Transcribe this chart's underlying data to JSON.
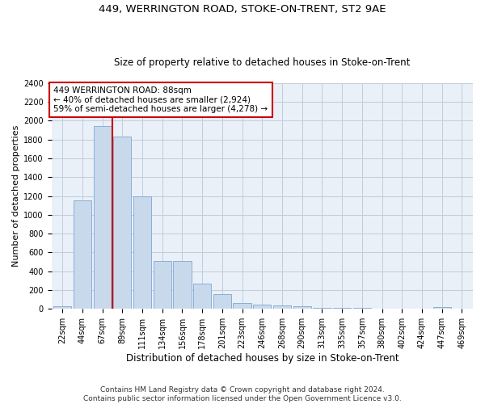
{
  "title": "449, WERRINGTON ROAD, STOKE-ON-TRENT, ST2 9AE",
  "subtitle": "Size of property relative to detached houses in Stoke-on-Trent",
  "xlabel": "Distribution of detached houses by size in Stoke-on-Trent",
  "ylabel": "Number of detached properties",
  "bar_color": "#c9d9ec",
  "bar_edge_color": "#7aa8d2",
  "grid_color": "#c0ccdd",
  "background_color": "#eaf0f8",
  "annotation_line_color": "#cc0000",
  "footer_line1": "Contains HM Land Registry data © Crown copyright and database right 2024.",
  "footer_line2": "Contains public sector information licensed under the Open Government Licence v3.0.",
  "annotation_line1": "449 WERRINGTON ROAD: 88sqm",
  "annotation_line2": "← 40% of detached houses are smaller (2,924)",
  "annotation_line3": "59% of semi-detached houses are larger (4,278) →",
  "categories": [
    "22sqm",
    "44sqm",
    "67sqm",
    "89sqm",
    "111sqm",
    "134sqm",
    "156sqm",
    "178sqm",
    "201sqm",
    "223sqm",
    "246sqm",
    "268sqm",
    "290sqm",
    "313sqm",
    "335sqm",
    "357sqm",
    "380sqm",
    "402sqm",
    "424sqm",
    "447sqm",
    "469sqm"
  ],
  "values": [
    30,
    1150,
    1940,
    1830,
    1200,
    510,
    510,
    265,
    155,
    65,
    45,
    35,
    30,
    12,
    10,
    8,
    5,
    5,
    5,
    20,
    5
  ],
  "ylim": [
    0,
    2400
  ],
  "yticks": [
    0,
    200,
    400,
    600,
    800,
    1000,
    1200,
    1400,
    1600,
    1800,
    2000,
    2200,
    2400
  ],
  "vline_x_index": 3,
  "title_fontsize": 9.5,
  "subtitle_fontsize": 8.5,
  "xlabel_fontsize": 8.5,
  "ylabel_fontsize": 8,
  "tick_fontsize": 7,
  "footer_fontsize": 6.5,
  "annotation_fontsize": 7.5
}
